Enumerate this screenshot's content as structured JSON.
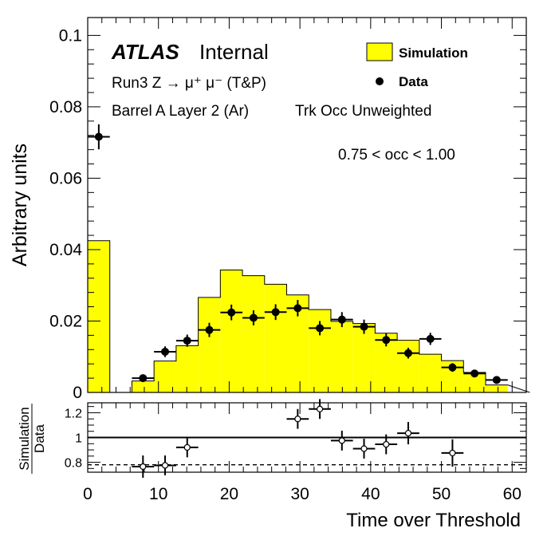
{
  "chart_data": [
    {
      "type": "bar",
      "panel": "main",
      "title": "",
      "ylabel": "Arbitrary units",
      "xlim": [
        0,
        62
      ],
      "ylim": [
        0,
        0.105
      ],
      "y_ticks": [
        0,
        0.02,
        0.04,
        0.06,
        0.08,
        0.1
      ],
      "y_tick_labels": [
        "0",
        "0.02",
        "0.04",
        "0.06",
        "0.08",
        "0.1"
      ],
      "annotations": {
        "atlas": "ATLAS",
        "internal": "Internal",
        "line1": "Run3 Z → μ⁺ μ⁻ (T&P)",
        "line2": "Barrel A Layer 2 (Ar)",
        "line3": "Trk Occ Unweighted",
        "range": "0.75 < occ < 1.00"
      },
      "legend": {
        "placement": "top-right",
        "entries": [
          {
            "label": "Simulation",
            "style": "filled-box",
            "color": "#ffff00"
          },
          {
            "label": "Data",
            "style": "marker",
            "color": "#000000"
          }
        ]
      },
      "simulation": {
        "name": "Simulation",
        "color": "#ffff00",
        "bin_edges": [
          0,
          3.125,
          6.25,
          9.375,
          12.5,
          15.625,
          18.75,
          21.875,
          25,
          28.125,
          31.25,
          34.375,
          37.5,
          40.625,
          43.75,
          46.875,
          50,
          53.125,
          56.25,
          59.375
        ],
        "values": [
          0.0425,
          0.0,
          0.0032,
          0.0088,
          0.0131,
          0.0266,
          0.0343,
          0.0327,
          0.0303,
          0.0273,
          0.0232,
          0.0199,
          0.0193,
          0.0166,
          0.0146,
          0.0107,
          0.0089,
          0.0056,
          0.0021
        ]
      },
      "data": {
        "name": "Data",
        "color": "#000000",
        "points": [
          {
            "x": 1.5625,
            "y": 0.0716,
            "yerr": 0.0035
          },
          {
            "x": 7.8125,
            "y": 0.004,
            "yerr": 0.0007
          },
          {
            "x": 10.9375,
            "y": 0.0114,
            "yerr": 0.0015
          },
          {
            "x": 14.0625,
            "y": 0.0145,
            "yerr": 0.0017
          },
          {
            "x": 17.1875,
            "y": 0.0175,
            "yerr": 0.002
          },
          {
            "x": 20.3125,
            "y": 0.0224,
            "yerr": 0.0022
          },
          {
            "x": 23.4375,
            "y": 0.0209,
            "yerr": 0.0021
          },
          {
            "x": 26.5625,
            "y": 0.0225,
            "yerr": 0.0022
          },
          {
            "x": 29.6875,
            "y": 0.0236,
            "yerr": 0.0023
          },
          {
            "x": 32.8125,
            "y": 0.018,
            "yerr": 0.002
          },
          {
            "x": 35.9375,
            "y": 0.0204,
            "yerr": 0.0021
          },
          {
            "x": 39.0625,
            "y": 0.0184,
            "yerr": 0.002
          },
          {
            "x": 42.1875,
            "y": 0.0147,
            "yerr": 0.0018
          },
          {
            "x": 45.3125,
            "y": 0.011,
            "yerr": 0.0015
          },
          {
            "x": 48.4375,
            "y": 0.015,
            "yerr": 0.0017
          },
          {
            "x": 51.5625,
            "y": 0.007,
            "yerr": 0.0012
          },
          {
            "x": 54.6875,
            "y": 0.0053,
            "yerr": 0.001
          },
          {
            "x": 57.8125,
            "y": 0.0035,
            "yerr": 0.0008
          }
        ]
      }
    },
    {
      "type": "scatter",
      "panel": "ratio",
      "ylabel_numerator": "Simulation",
      "ylabel_denominator": "Data",
      "xlabel": "Time over Threshold",
      "xlim": [
        0,
        62
      ],
      "ylim": [
        0.72,
        1.28
      ],
      "x_ticks": [
        0,
        10,
        20,
        30,
        40,
        50,
        60
      ],
      "x_tick_labels": [
        "0",
        "10",
        "20",
        "30",
        "40",
        "50",
        "60"
      ],
      "y_ticks": [
        0.8,
        1,
        1.2
      ],
      "y_tick_labels": [
        "0.8",
        "1",
        "1.2"
      ],
      "reference_lines": [
        {
          "y": 1.0,
          "style": "solid"
        },
        {
          "y": 0.78,
          "style": "dashed"
        }
      ],
      "points": [
        {
          "x": 7.8125,
          "y": 0.765,
          "yerr": 0.09
        },
        {
          "x": 10.9375,
          "y": 0.775,
          "yerr": 0.08
        },
        {
          "x": 14.0625,
          "y": 0.92,
          "yerr": 0.08
        },
        {
          "x": 29.6875,
          "y": 1.15,
          "yerr": 0.08
        },
        {
          "x": 32.8125,
          "y": 1.23,
          "yerr": 0.08
        },
        {
          "x": 35.9375,
          "y": 0.975,
          "yerr": 0.08
        },
        {
          "x": 39.0625,
          "y": 0.91,
          "yerr": 0.08
        },
        {
          "x": 42.1875,
          "y": 0.945,
          "yerr": 0.08
        },
        {
          "x": 45.3125,
          "y": 1.035,
          "yerr": 0.09
        },
        {
          "x": 51.5625,
          "y": 0.875,
          "yerr": 0.11
        }
      ]
    }
  ]
}
